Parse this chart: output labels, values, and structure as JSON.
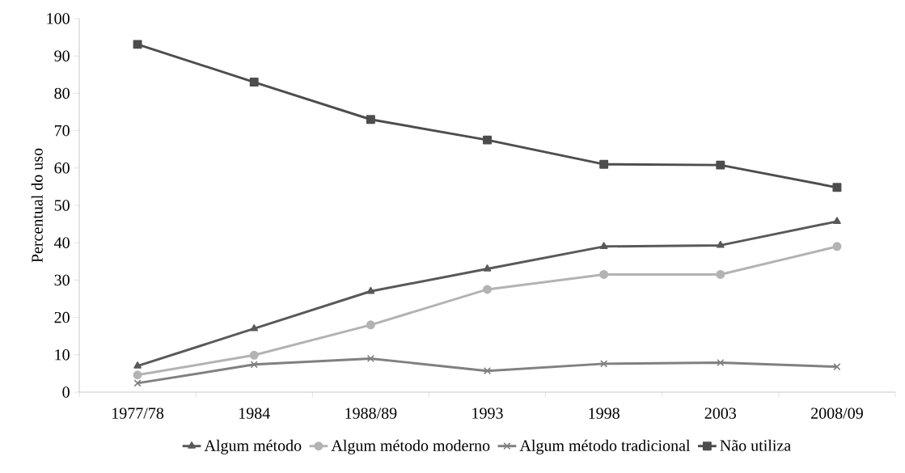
{
  "chart_data": {
    "type": "line",
    "ylabel": "Percentual do uso",
    "categories": [
      "1977/78",
      "1984",
      "1988/89",
      "1993",
      "1998",
      "2003",
      "2008/09"
    ],
    "ylim": [
      0,
      100
    ],
    "yticks": [
      0,
      10,
      20,
      30,
      40,
      50,
      60,
      70,
      80,
      90,
      100
    ],
    "grid": false,
    "legend": "bottom",
    "line_style": "solid",
    "series": [
      {
        "name": "Algum método",
        "color": "#595959",
        "marker": "triangle",
        "values": [
          7,
          17,
          27,
          33,
          39,
          39.3,
          45.7
        ]
      },
      {
        "name": "Algum método moderno",
        "color": "#b3b3b3",
        "marker": "circle",
        "values": [
          4.6,
          9.9,
          18,
          27.5,
          31.5,
          31.5,
          39
        ]
      },
      {
        "name": "Algum método tradicional",
        "color": "#808080",
        "marker": "cross",
        "values": [
          2.4,
          7.4,
          9,
          5.7,
          7.6,
          7.9,
          6.8
        ]
      },
      {
        "name": "Não utiliza",
        "color": "#4d4d4d",
        "marker": "square",
        "values": [
          93.1,
          83,
          73,
          67.5,
          61,
          60.8,
          54.8
        ]
      }
    ]
  }
}
